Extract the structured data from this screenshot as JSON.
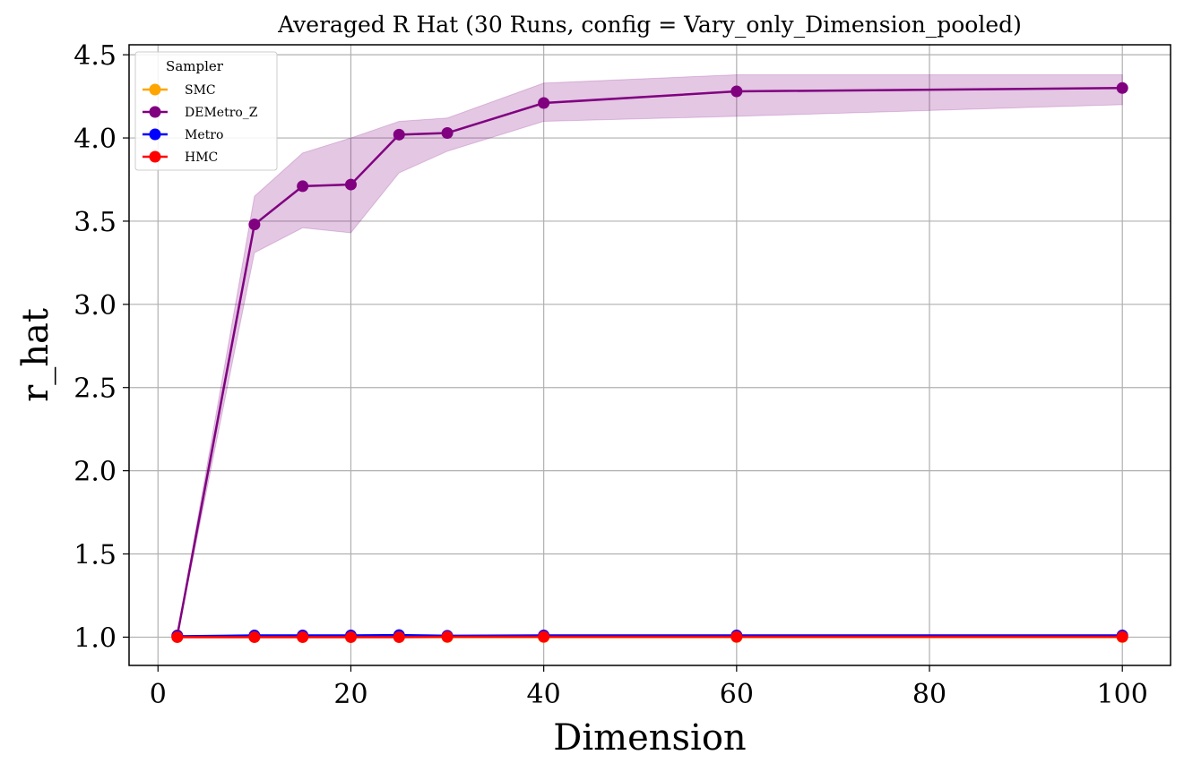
{
  "chart_data": {
    "type": "line",
    "title": "Averaged R Hat (30 Runs, config = Vary_only_Dimension_pooled)",
    "xlabel": "Dimension",
    "ylabel": "r_hat",
    "xlim": [
      -3,
      105
    ],
    "ylim": [
      0.83,
      4.56
    ],
    "xticks": [
      0,
      20,
      40,
      60,
      80,
      100
    ],
    "xtick_labels": [
      "0",
      "20",
      "40",
      "60",
      "80",
      "100"
    ],
    "yticks": [
      1.0,
      1.5,
      2.0,
      2.5,
      3.0,
      3.5,
      4.0,
      4.5
    ],
    "ytick_labels": [
      "1.0",
      "1.5",
      "2.0",
      "2.5",
      "3.0",
      "3.5",
      "4.0",
      "4.5"
    ],
    "grid": true,
    "legend": {
      "title": "Sampler",
      "placement": "top-left"
    },
    "x": [
      2,
      10,
      15,
      20,
      25,
      30,
      40,
      60,
      100
    ],
    "series": [
      {
        "name": "SMC",
        "color": "#ffa500",
        "values": [
          1.0,
          1.0,
          1.0,
          1.0,
          1.0,
          1.0,
          1.0,
          1.0,
          1.0
        ]
      },
      {
        "name": "DEMetro_Z",
        "color": "#800080",
        "values": [
          1.01,
          3.48,
          3.71,
          3.72,
          4.02,
          4.03,
          4.21,
          4.28,
          4.3
        ],
        "band_lower": [
          1.005,
          3.31,
          3.46,
          3.43,
          3.79,
          3.92,
          4.1,
          4.13,
          4.2
        ],
        "band_upper": [
          1.015,
          3.65,
          3.91,
          4.0,
          4.1,
          4.12,
          4.33,
          4.38,
          4.38
        ]
      },
      {
        "name": "Metro",
        "color": "#0000ff",
        "values": [
          1.005,
          1.01,
          1.01,
          1.01,
          1.012,
          1.008,
          1.01,
          1.01,
          1.01
        ]
      },
      {
        "name": "HMC",
        "color": "#ff0000",
        "values": [
          1.0,
          1.0,
          1.0,
          1.0,
          1.0,
          1.002,
          1.002,
          1.002,
          1.002
        ]
      }
    ]
  }
}
